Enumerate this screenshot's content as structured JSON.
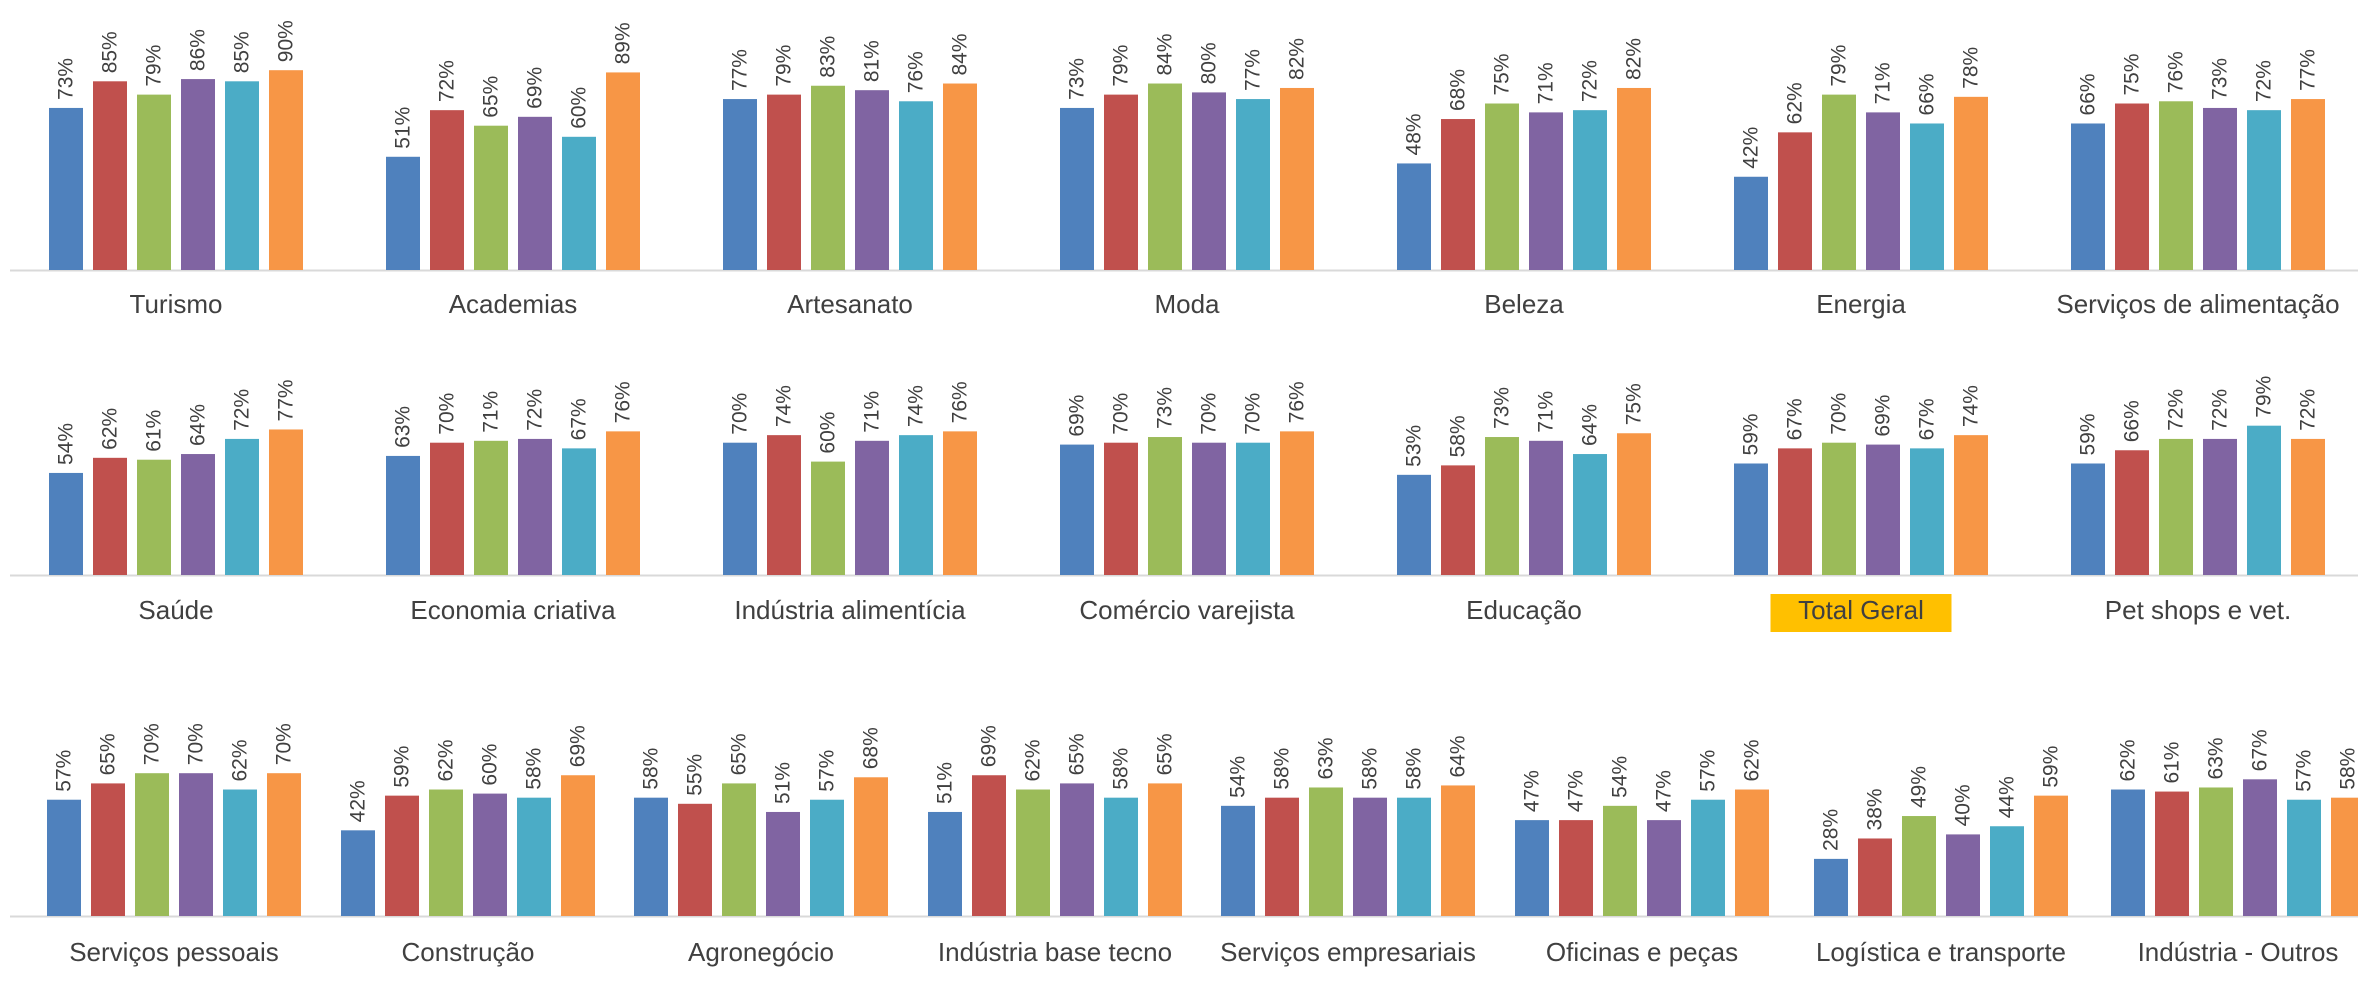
{
  "colors": [
    "#4f81bd",
    "#c0504d",
    "#9bbb59",
    "#8064a2",
    "#4bacc6",
    "#f79646"
  ],
  "highlight_color": "#ffc000",
  "chart_data": [
    {
      "type": "bar",
      "title": "Turismo",
      "values": [
        73,
        85,
        79,
        86,
        85,
        90
      ],
      "labels": [
        "73%",
        "85%",
        "79%",
        "86%",
        "85%",
        "90%"
      ],
      "ylim": [
        0,
        100
      ]
    },
    {
      "type": "bar",
      "title": "Academias",
      "values": [
        51,
        72,
        65,
        69,
        60,
        89
      ],
      "labels": [
        "51%",
        "72%",
        "65%",
        "69%",
        "60%",
        "89%"
      ],
      "ylim": [
        0,
        100
      ]
    },
    {
      "type": "bar",
      "title": "Artesanato",
      "values": [
        77,
        79,
        83,
        81,
        76,
        84
      ],
      "labels": [
        "77%",
        "79%",
        "83%",
        "81%",
        "76%",
        "84%"
      ],
      "ylim": [
        0,
        100
      ]
    },
    {
      "type": "bar",
      "title": "Moda",
      "values": [
        73,
        79,
        84,
        80,
        77,
        82
      ],
      "labels": [
        "73%",
        "79%",
        "84%",
        "80%",
        "77%",
        "82%"
      ],
      "ylim": [
        0,
        100
      ]
    },
    {
      "type": "bar",
      "title": "Beleza",
      "values": [
        48,
        68,
        75,
        71,
        72,
        82
      ],
      "labels": [
        "48%",
        "68%",
        "75%",
        "71%",
        "72%",
        "82%"
      ],
      "ylim": [
        0,
        100
      ]
    },
    {
      "type": "bar",
      "title": "Energia",
      "values": [
        42,
        62,
        79,
        71,
        66,
        78
      ],
      "labels": [
        "42%",
        "62%",
        "79%",
        "71%",
        "66%",
        "78%"
      ],
      "ylim": [
        0,
        100
      ]
    },
    {
      "type": "bar",
      "title": "Serviços de alimentação",
      "values": [
        66,
        75,
        76,
        73,
        72,
        77
      ],
      "labels": [
        "66%",
        "75%",
        "76%",
        "73%",
        "72%",
        "77%"
      ],
      "ylim": [
        0,
        100
      ]
    },
    {
      "type": "bar",
      "title": "Saúde",
      "values": [
        54,
        62,
        61,
        64,
        72,
        77
      ],
      "labels": [
        "54%",
        "62%",
        "61%",
        "64%",
        "72%",
        "77%"
      ],
      "ylim": [
        0,
        100
      ]
    },
    {
      "type": "bar",
      "title": "Economia criativa",
      "values": [
        63,
        70,
        71,
        72,
        67,
        76
      ],
      "labels": [
        "63%",
        "70%",
        "71%",
        "72%",
        "67%",
        "76%"
      ],
      "ylim": [
        0,
        100
      ]
    },
    {
      "type": "bar",
      "title": "Indústria alimentícia",
      "values": [
        70,
        74,
        60,
        71,
        74,
        76
      ],
      "labels": [
        "70%",
        "74%",
        "60%",
        "71%",
        "74%",
        "76%"
      ],
      "ylim": [
        0,
        100
      ]
    },
    {
      "type": "bar",
      "title": "Comércio varejista",
      "values": [
        69,
        70,
        73,
        70,
        70,
        76
      ],
      "labels": [
        "69%",
        "70%",
        "73%",
        "70%",
        "70%",
        "76%"
      ],
      "ylim": [
        0,
        100
      ]
    },
    {
      "type": "bar",
      "title": "Educação",
      "values": [
        53,
        58,
        73,
        71,
        64,
        75
      ],
      "labels": [
        "53%",
        "58%",
        "73%",
        "71%",
        "64%",
        "75%"
      ],
      "ylim": [
        0,
        100
      ]
    },
    {
      "type": "bar",
      "title": "Total Geral",
      "highlight": true,
      "values": [
        59,
        67,
        70,
        69,
        67,
        74
      ],
      "labels": [
        "59%",
        "67%",
        "70%",
        "69%",
        "67%",
        "74%"
      ],
      "ylim": [
        0,
        100
      ]
    },
    {
      "type": "bar",
      "title": "Pet shops e vet.",
      "values": [
        59,
        66,
        72,
        72,
        79,
        72
      ],
      "labels": [
        "59%",
        "66%",
        "72%",
        "72%",
        "79%",
        "72%"
      ],
      "ylim": [
        0,
        100
      ]
    },
    {
      "type": "bar",
      "title": "Serviços pessoais",
      "values": [
        57,
        65,
        70,
        70,
        62,
        70
      ],
      "labels": [
        "57%",
        "65%",
        "70%",
        "70%",
        "62%",
        "70%"
      ],
      "ylim": [
        0,
        100
      ]
    },
    {
      "type": "bar",
      "title": "Construção",
      "values": [
        42,
        59,
        62,
        60,
        58,
        69
      ],
      "labels": [
        "42%",
        "59%",
        "62%",
        "60%",
        "58%",
        "69%"
      ],
      "ylim": [
        0,
        100
      ]
    },
    {
      "type": "bar",
      "title": "Agronegócio",
      "values": [
        58,
        55,
        65,
        51,
        57,
        68
      ],
      "labels": [
        "58%",
        "55%",
        "65%",
        "51%",
        "57%",
        "68%"
      ],
      "ylim": [
        0,
        100
      ]
    },
    {
      "type": "bar",
      "title": "Indústria base tecno",
      "values": [
        51,
        69,
        62,
        65,
        58,
        65
      ],
      "labels": [
        "51%",
        "69%",
        "62%",
        "65%",
        "58%",
        "65%"
      ],
      "ylim": [
        0,
        100
      ]
    },
    {
      "type": "bar",
      "title": "Serviços empresariais",
      "values": [
        54,
        58,
        63,
        58,
        58,
        64
      ],
      "labels": [
        "54%",
        "58%",
        "63%",
        "58%",
        "58%",
        "64%"
      ],
      "ylim": [
        0,
        100
      ]
    },
    {
      "type": "bar",
      "title": "Oficinas e peças",
      "values": [
        47,
        47,
        54,
        47,
        57,
        62
      ],
      "labels": [
        "47%",
        "47%",
        "54%",
        "47%",
        "57%",
        "62%"
      ],
      "ylim": [
        0,
        100
      ]
    },
    {
      "type": "bar",
      "title": "Logística e transporte",
      "values": [
        28,
        38,
        49,
        40,
        44,
        59
      ],
      "labels": [
        "28%",
        "38%",
        "49%",
        "40%",
        "44%",
        "59%"
      ],
      "ylim": [
        0,
        100
      ]
    },
    {
      "type": "bar",
      "title": "Indústria - Outros",
      "values": [
        62,
        61,
        63,
        67,
        57,
        58
      ],
      "labels": [
        "62%",
        "61%",
        "63%",
        "67%",
        "57%",
        "58%"
      ],
      "ylim": [
        0,
        100
      ]
    }
  ]
}
